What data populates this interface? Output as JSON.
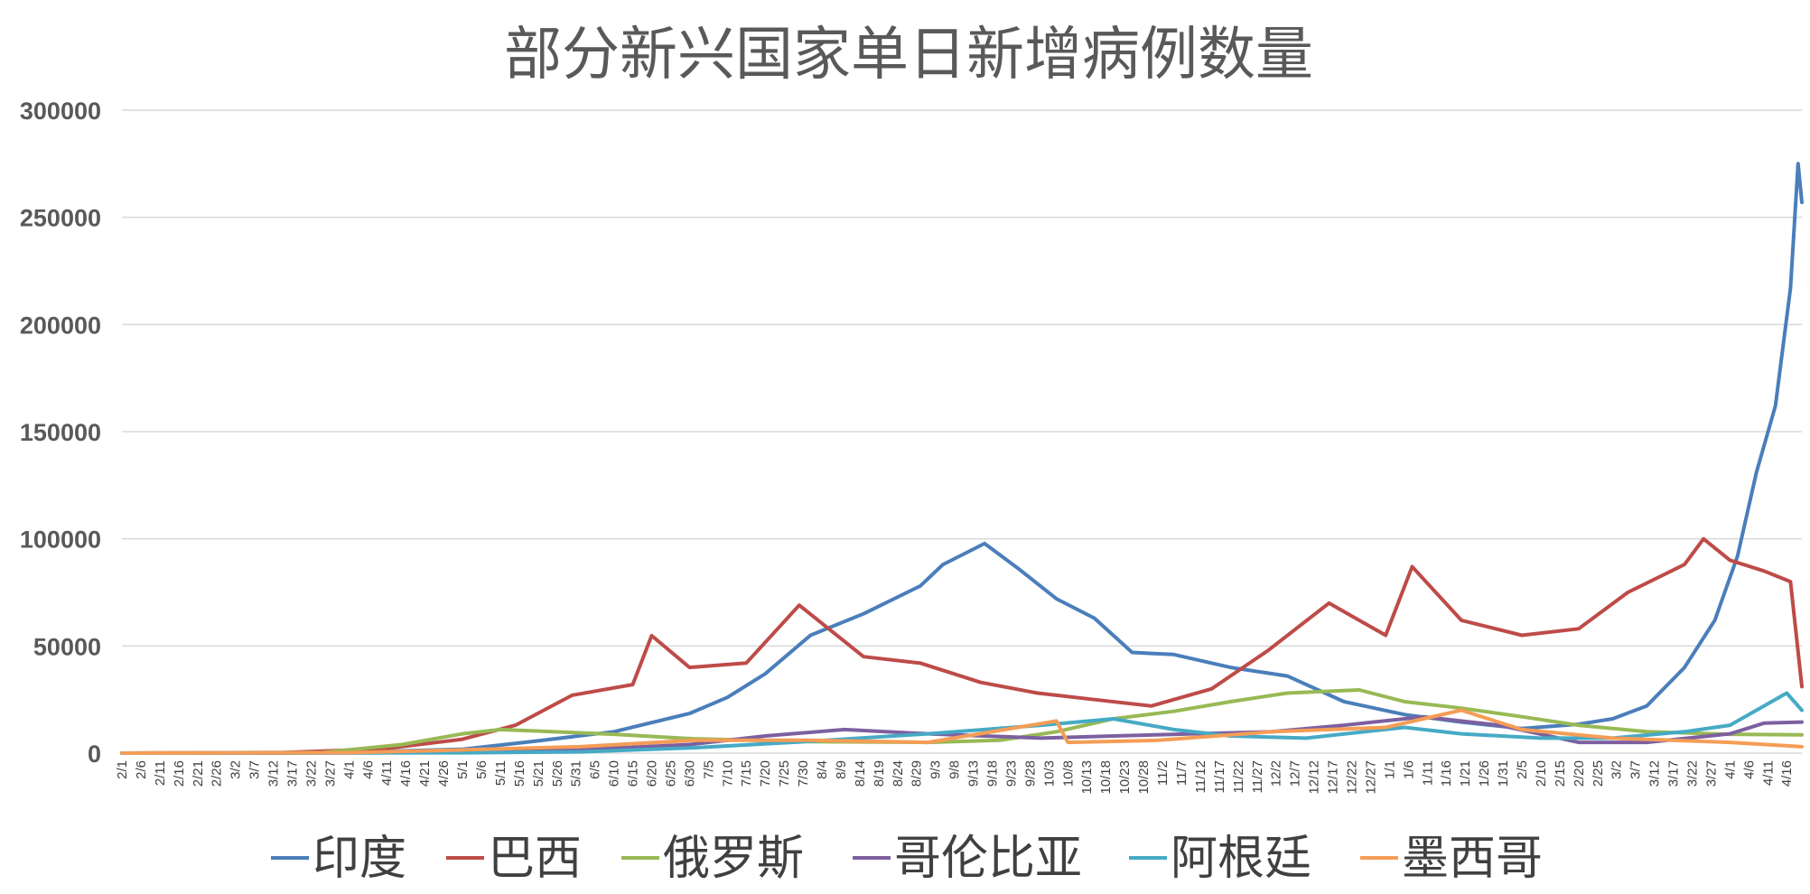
{
  "chart_data": {
    "type": "line",
    "title": "部分新兴国家单日新增病例数量",
    "xlabel": "",
    "ylabel": "",
    "ylim": [
      0,
      300000
    ],
    "yticks": [
      0,
      50000,
      100000,
      150000,
      200000,
      250000,
      300000
    ],
    "x_start": "2020-02-01",
    "x_end": "2021-04-20",
    "x_tick_labels": [
      "2/1",
      "2/6",
      "2/11",
      "2/16",
      "2/21",
      "2/26",
      "3/2",
      "3/7",
      "3/12",
      "3/17",
      "3/22",
      "3/27",
      "4/1",
      "4/6",
      "4/11",
      "4/16",
      "4/21",
      "4/26",
      "5/1",
      "5/6",
      "5/11",
      "5/16",
      "5/21",
      "5/26",
      "5/31",
      "6/5",
      "6/10",
      "6/15",
      "6/20",
      "6/25",
      "6/30",
      "7/5",
      "7/10",
      "7/15",
      "7/20",
      "7/25",
      "7/30",
      "8/4",
      "8/9",
      "8/14",
      "8/19",
      "8/24",
      "8/29",
      "9/3",
      "9/8",
      "9/13",
      "9/18",
      "9/23",
      "9/28",
      "10/3",
      "10/8",
      "10/13",
      "10/18",
      "10/23",
      "10/28",
      "11/2",
      "11/7",
      "11/12",
      "11/17",
      "11/22",
      "11/27",
      "12/2",
      "12/7",
      "12/12",
      "12/17",
      "12/22",
      "12/27",
      "1/1",
      "1/6",
      "1/11",
      "1/16",
      "1/21",
      "1/26",
      "1/31",
      "2/5",
      "2/10",
      "2/15",
      "2/20",
      "2/25",
      "3/2",
      "3/7",
      "3/12",
      "3/17",
      "3/22",
      "3/27",
      "4/1",
      "4/6",
      "4/11",
      "4/16"
    ],
    "grid": true,
    "legend_position": "bottom",
    "series": [
      {
        "name": "印度",
        "color": "#4a7ebb",
        "points": [
          [
            "2020-02-01",
            0
          ],
          [
            "2020-03-15",
            0
          ],
          [
            "2020-04-10",
            800
          ],
          [
            "2020-05-01",
            1800
          ],
          [
            "2020-05-20",
            5500
          ],
          [
            "2020-06-10",
            10000
          ],
          [
            "2020-06-30",
            18500
          ],
          [
            "2020-07-10",
            26000
          ],
          [
            "2020-07-20",
            37000
          ],
          [
            "2020-08-01",
            55000
          ],
          [
            "2020-08-15",
            65000
          ],
          [
            "2020-08-30",
            78000
          ],
          [
            "2020-09-05",
            88000
          ],
          [
            "2020-09-16",
            97800
          ],
          [
            "2020-09-25",
            86000
          ],
          [
            "2020-10-05",
            72000
          ],
          [
            "2020-10-15",
            63000
          ],
          [
            "2020-10-25",
            47000
          ],
          [
            "2020-11-05",
            46000
          ],
          [
            "2020-11-20",
            40000
          ],
          [
            "2020-12-05",
            36000
          ],
          [
            "2020-12-20",
            24000
          ],
          [
            "2021-01-05",
            18000
          ],
          [
            "2021-01-20",
            14500
          ],
          [
            "2021-02-05",
            11500
          ],
          [
            "2021-02-20",
            13500
          ],
          [
            "2021-03-01",
            16000
          ],
          [
            "2021-03-10",
            22000
          ],
          [
            "2021-03-20",
            40000
          ],
          [
            "2021-03-28",
            62000
          ],
          [
            "2021-04-03",
            92000
          ],
          [
            "2021-04-08",
            131000
          ],
          [
            "2021-04-13",
            162000
          ],
          [
            "2021-04-17",
            217000
          ],
          [
            "2021-04-19",
            275000
          ],
          [
            "2021-04-20",
            257000
          ]
        ]
      },
      {
        "name": "巴西",
        "color": "#be4b48",
        "points": [
          [
            "2020-02-01",
            0
          ],
          [
            "2020-03-15",
            300
          ],
          [
            "2020-04-10",
            2000
          ],
          [
            "2020-05-01",
            6500
          ],
          [
            "2020-05-15",
            13000
          ],
          [
            "2020-05-30",
            27000
          ],
          [
            "2020-06-15",
            32000
          ],
          [
            "2020-06-20",
            54800
          ],
          [
            "2020-06-30",
            40000
          ],
          [
            "2020-07-15",
            42000
          ],
          [
            "2020-07-29",
            69000
          ],
          [
            "2020-08-15",
            45000
          ],
          [
            "2020-08-30",
            42000
          ],
          [
            "2020-09-15",
            33000
          ],
          [
            "2020-09-30",
            28000
          ],
          [
            "2020-10-15",
            25000
          ],
          [
            "2020-10-30",
            22000
          ],
          [
            "2020-11-15",
            30000
          ],
          [
            "2020-11-30",
            48000
          ],
          [
            "2020-12-16",
            70000
          ],
          [
            "2020-12-31",
            55000
          ],
          [
            "2021-01-07",
            87000
          ],
          [
            "2021-01-20",
            62000
          ],
          [
            "2021-02-05",
            55000
          ],
          [
            "2021-02-20",
            58000
          ],
          [
            "2021-03-05",
            75000
          ],
          [
            "2021-03-20",
            88000
          ],
          [
            "2021-03-25",
            100000
          ],
          [
            "2021-04-01",
            90000
          ],
          [
            "2021-04-10",
            85000
          ],
          [
            "2021-04-17",
            80000
          ],
          [
            "2021-04-20",
            31000
          ]
        ]
      },
      {
        "name": "俄罗斯",
        "color": "#98b954",
        "points": [
          [
            "2020-02-01",
            0
          ],
          [
            "2020-03-25",
            300
          ],
          [
            "2020-04-15",
            4000
          ],
          [
            "2020-05-01",
            9000
          ],
          [
            "2020-05-11",
            11000
          ],
          [
            "2020-06-10",
            8800
          ],
          [
            "2020-07-01",
            6700
          ],
          [
            "2020-08-01",
            5400
          ],
          [
            "2020-09-01",
            5000
          ],
          [
            "2020-09-20",
            6000
          ],
          [
            "2020-10-05",
            10000
          ],
          [
            "2020-10-20",
            16000
          ],
          [
            "2020-11-05",
            19500
          ],
          [
            "2020-11-20",
            24000
          ],
          [
            "2020-12-05",
            28000
          ],
          [
            "2020-12-24",
            29500
          ],
          [
            "2021-01-05",
            24000
          ],
          [
            "2021-01-20",
            21000
          ],
          [
            "2021-02-05",
            17000
          ],
          [
            "2021-02-20",
            13000
          ],
          [
            "2021-03-10",
            10000
          ],
          [
            "2021-04-01",
            8800
          ],
          [
            "2021-04-20",
            8500
          ]
        ]
      },
      {
        "name": "哥伦比亚",
        "color": "#7d60a0",
        "points": [
          [
            "2020-02-01",
            0
          ],
          [
            "2020-04-01",
            100
          ],
          [
            "2020-05-01",
            500
          ],
          [
            "2020-06-01",
            1500
          ],
          [
            "2020-06-30",
            4000
          ],
          [
            "2020-07-20",
            8000
          ],
          [
            "2020-08-10",
            11000
          ],
          [
            "2020-09-01",
            9000
          ],
          [
            "2020-10-01",
            7000
          ],
          [
            "2020-10-20",
            8000
          ],
          [
            "2020-11-10",
            9000
          ],
          [
            "2020-12-01",
            10000
          ],
          [
            "2020-12-20",
            13000
          ],
          [
            "2021-01-10",
            17000
          ],
          [
            "2021-01-30",
            13000
          ],
          [
            "2021-02-20",
            5000
          ],
          [
            "2021-03-10",
            5000
          ],
          [
            "2021-04-01",
            9000
          ],
          [
            "2021-04-10",
            14000
          ],
          [
            "2021-04-20",
            14500
          ]
        ]
      },
      {
        "name": "阿根廷",
        "color": "#46aac5",
        "points": [
          [
            "2020-02-01",
            0
          ],
          [
            "2020-05-01",
            150
          ],
          [
            "2020-06-01",
            600
          ],
          [
            "2020-07-01",
            2500
          ],
          [
            "2020-08-01",
            5500
          ],
          [
            "2020-09-01",
            9000
          ],
          [
            "2020-10-01",
            13000
          ],
          [
            "2020-10-20",
            16000
          ],
          [
            "2020-11-05",
            11000
          ],
          [
            "2020-11-20",
            8000
          ],
          [
            "2020-12-10",
            7000
          ],
          [
            "2021-01-05",
            12000
          ],
          [
            "2021-01-20",
            9000
          ],
          [
            "2021-02-10",
            7000
          ],
          [
            "2021-03-01",
            7000
          ],
          [
            "2021-03-20",
            10000
          ],
          [
            "2021-04-01",
            13000
          ],
          [
            "2021-04-10",
            22000
          ],
          [
            "2021-04-16",
            28000
          ],
          [
            "2021-04-20",
            20000
          ]
        ]
      },
      {
        "name": "墨西哥",
        "color": "#f59d56",
        "points": [
          [
            "2020-02-01",
            0
          ],
          [
            "2020-04-01",
            200
          ],
          [
            "2020-05-01",
            1500
          ],
          [
            "2020-06-01",
            3000
          ],
          [
            "2020-07-01",
            6000
          ],
          [
            "2020-08-01",
            6000
          ],
          [
            "2020-09-01",
            5000
          ],
          [
            "2020-10-05",
            15000
          ],
          [
            "2020-10-08",
            5000
          ],
          [
            "2020-11-01",
            6000
          ],
          [
            "2020-12-01",
            10000
          ],
          [
            "2020-12-31",
            12000
          ],
          [
            "2021-01-20",
            20000
          ],
          [
            "2021-02-05",
            11000
          ],
          [
            "2021-03-01",
            7000
          ],
          [
            "2021-04-01",
            5000
          ],
          [
            "2021-04-20",
            3000
          ]
        ]
      }
    ]
  }
}
